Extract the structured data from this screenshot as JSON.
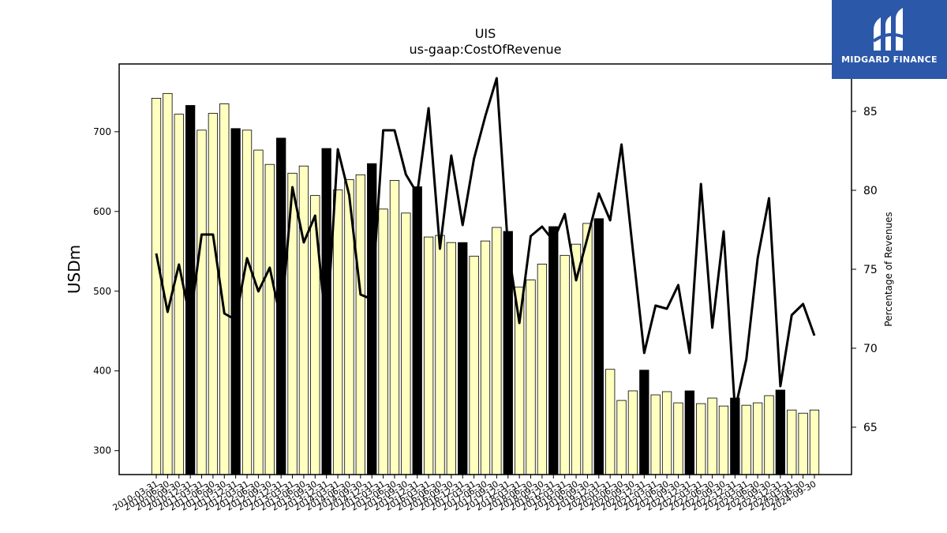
{
  "brand": {
    "name": "MIDGARD FINANCE",
    "bg_color": "#2b58a9"
  },
  "chart_data": {
    "type": "bar",
    "title": "UIS",
    "subtitle": "us-gaap:CostOfRevenue",
    "ylabel": "USDm",
    "y2label": "Percentage of Revenues",
    "ylim": [
      270,
      785
    ],
    "y2lim": [
      62,
      88
    ],
    "yticks": [
      300,
      400,
      500,
      600,
      700
    ],
    "y2ticks": [
      65,
      70,
      75,
      80,
      85
    ],
    "bar_colors": {
      "quarter": "#ffffc0",
      "annual": "#000000"
    },
    "categories": [
      "2010-03-31",
      "2010-06-30",
      "2010-09-30",
      "2010-12-31",
      "2011-03-31",
      "2011-06-30",
      "2011-09-30",
      "2011-12-31",
      "2012-03-31",
      "2012-06-30",
      "2012-09-30",
      "2012-12-31",
      "2013-03-31",
      "2013-06-30",
      "2013-09-30",
      "2013-12-31",
      "2014-03-31",
      "2014-06-30",
      "2014-09-30",
      "2014-12-31",
      "2015-03-31",
      "2015-06-30",
      "2015-09-30",
      "2015-12-31",
      "2016-03-31",
      "2016-06-30",
      "2016-09-30",
      "2016-12-31",
      "2017-03-31",
      "2017-06-30",
      "2017-09-30",
      "2017-12-31",
      "2018-03-31",
      "2018-06-30",
      "2018-09-30",
      "2018-12-31",
      "2019-03-31",
      "2019-06-30",
      "2019-09-30",
      "2019-12-31",
      "2020-03-31",
      "2020-06-30",
      "2020-09-30",
      "2020-12-31",
      "2021-03-31",
      "2021-06-30",
      "2021-09-30",
      "2021-12-31",
      "2022-03-31",
      "2022-06-30",
      "2022-09-30",
      "2022-12-31",
      "2023-03-31",
      "2023-06-30",
      "2023-09-30",
      "2023-12-31",
      "2024-03-31",
      "2024-06-30",
      "2024-09-30"
    ],
    "series": [
      {
        "name": "CostOfRevenue",
        "values": [
          742,
          748,
          722,
          733,
          702,
          723,
          735,
          704,
          702,
          677,
          659,
          692,
          648,
          657,
          620,
          679,
          627,
          640,
          646,
          660,
          603,
          639,
          598,
          631,
          568,
          570,
          561,
          561,
          544,
          563,
          580,
          575,
          505,
          514,
          534,
          581,
          545,
          559,
          585,
          591,
          402,
          363,
          375,
          401,
          370,
          374,
          360,
          375,
          359,
          366,
          356,
          366,
          357,
          360,
          369,
          376,
          351,
          347,
          351
        ],
        "annual": [
          false,
          false,
          false,
          true,
          false,
          false,
          false,
          true,
          false,
          false,
          false,
          true,
          false,
          false,
          false,
          true,
          false,
          false,
          false,
          true,
          false,
          false,
          false,
          true,
          false,
          false,
          false,
          true,
          false,
          false,
          false,
          true,
          false,
          false,
          false,
          true,
          false,
          false,
          false,
          true,
          false,
          false,
          false,
          true,
          false,
          false,
          false,
          true,
          false,
          false,
          false,
          true,
          false,
          false,
          false,
          true,
          false,
          false,
          false
        ]
      },
      {
        "name": "Percentage of Revenues",
        "axis": "right",
        "values": [
          76.0,
          72.3,
          75.3,
          71.8,
          77.2,
          77.2,
          72.2,
          71.8,
          75.7,
          73.6,
          75.1,
          71.7,
          80.2,
          76.7,
          78.4,
          71.0,
          82.6,
          79.7,
          73.4,
          73.1,
          83.8,
          83.8,
          81.0,
          79.8,
          85.2,
          76.3,
          82.2,
          77.8,
          82.0,
          84.7,
          87.1,
          76.3,
          71.6,
          77.1,
          77.7,
          76.8,
          78.5,
          74.3,
          77.0,
          79.8,
          78.1,
          82.9,
          76.2,
          69.7,
          72.7,
          72.5,
          74.0,
          69.7,
          80.4,
          71.3,
          77.4,
          66.1,
          69.3,
          75.7,
          79.5,
          67.6,
          72.1,
          72.8,
          70.8
        ]
      }
    ]
  }
}
